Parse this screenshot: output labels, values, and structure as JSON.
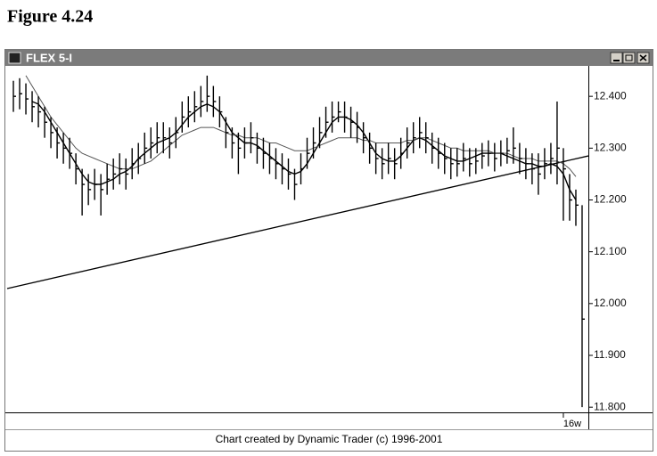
{
  "figure_label": "Figure 4.24",
  "window_title": "FLEX 5-I",
  "chart_data": {
    "type": "ohlc",
    "footer": "Chart created by Dynamic Trader (c) 1996-2001",
    "x": [
      0,
      1,
      2,
      3,
      4,
      5,
      6,
      7,
      8,
      9,
      10,
      11,
      12,
      13,
      14,
      15,
      16,
      17,
      18,
      19,
      20,
      21,
      22,
      23,
      24,
      25,
      26,
      27,
      28,
      29,
      30,
      31,
      32,
      33,
      34,
      35,
      36,
      37,
      38,
      39,
      40,
      41,
      42,
      43,
      44,
      45,
      46,
      47,
      48,
      49,
      50,
      51,
      52,
      53,
      54,
      55,
      56,
      57,
      58,
      59,
      60,
      61,
      62,
      63,
      64,
      65,
      66,
      67,
      68,
      69,
      70,
      71,
      72,
      73,
      74,
      75,
      76,
      77,
      78,
      79,
      80,
      81,
      82,
      83,
      84,
      85,
      86,
      87,
      88,
      89,
      90,
      91
    ],
    "high": [
      12.43,
      12.435,
      12.425,
      12.41,
      12.4,
      12.38,
      12.36,
      12.34,
      12.33,
      12.32,
      12.29,
      12.26,
      12.25,
      12.26,
      12.25,
      12.27,
      12.28,
      12.29,
      12.28,
      12.3,
      12.31,
      12.33,
      12.34,
      12.35,
      12.35,
      12.34,
      12.36,
      12.39,
      12.4,
      12.41,
      12.42,
      12.44,
      12.42,
      12.4,
      12.36,
      12.34,
      12.33,
      12.34,
      12.35,
      12.33,
      12.32,
      12.31,
      12.3,
      12.29,
      12.28,
      12.26,
      12.29,
      12.32,
      12.34,
      12.36,
      12.38,
      12.39,
      12.39,
      12.39,
      12.38,
      12.37,
      12.35,
      12.33,
      12.31,
      12.3,
      12.31,
      12.3,
      12.32,
      12.34,
      12.35,
      12.36,
      12.35,
      12.33,
      12.32,
      12.31,
      12.3,
      12.3,
      12.31,
      12.3,
      12.3,
      12.31,
      12.315,
      12.31,
      12.315,
      12.32,
      12.34,
      12.31,
      12.3,
      12.29,
      12.29,
      12.3,
      12.31,
      12.39,
      12.3,
      12.25,
      12.22,
      12.19
    ],
    "low": [
      12.37,
      12.375,
      12.365,
      12.35,
      12.34,
      12.32,
      12.3,
      12.28,
      12.27,
      12.26,
      12.23,
      12.17,
      12.19,
      12.2,
      12.17,
      12.21,
      12.22,
      12.23,
      12.22,
      12.24,
      12.25,
      12.27,
      12.28,
      12.29,
      12.29,
      12.28,
      12.3,
      12.33,
      12.34,
      12.35,
      12.36,
      12.37,
      12.36,
      12.34,
      12.3,
      12.28,
      12.25,
      12.28,
      12.29,
      12.27,
      12.26,
      12.25,
      12.24,
      12.23,
      12.22,
      12.2,
      12.23,
      12.26,
      12.28,
      12.3,
      12.32,
      12.33,
      12.35,
      12.33,
      12.32,
      12.31,
      12.29,
      12.27,
      12.25,
      12.24,
      12.25,
      12.24,
      12.26,
      12.28,
      12.29,
      12.3,
      12.29,
      12.27,
      12.26,
      12.25,
      12.24,
      12.245,
      12.255,
      12.245,
      12.25,
      12.26,
      12.265,
      12.255,
      12.265,
      12.27,
      12.27,
      12.25,
      12.24,
      12.23,
      12.21,
      12.24,
      12.25,
      12.23,
      12.16,
      12.16,
      12.15,
      11.8
    ],
    "close": [
      12.4,
      12.405,
      12.395,
      12.38,
      12.37,
      12.35,
      12.33,
      12.31,
      12.3,
      12.29,
      12.26,
      12.23,
      12.22,
      12.23,
      12.22,
      12.24,
      12.25,
      12.26,
      12.25,
      12.27,
      12.28,
      12.3,
      12.31,
      12.32,
      12.32,
      12.31,
      12.33,
      12.36,
      12.37,
      12.38,
      12.39,
      12.4,
      12.39,
      12.37,
      12.33,
      12.31,
      12.3,
      12.31,
      12.32,
      12.3,
      12.29,
      12.28,
      12.27,
      12.26,
      12.25,
      12.23,
      12.26,
      12.29,
      12.31,
      12.33,
      12.35,
      12.36,
      12.37,
      12.36,
      12.35,
      12.34,
      12.32,
      12.3,
      12.28,
      12.27,
      12.28,
      12.27,
      12.29,
      12.31,
      12.32,
      12.33,
      12.32,
      12.3,
      12.29,
      12.28,
      12.27,
      12.27,
      12.28,
      12.27,
      12.275,
      12.285,
      12.29,
      12.28,
      12.29,
      12.295,
      12.3,
      12.28,
      12.27,
      12.26,
      12.25,
      12.27,
      12.28,
      12.3,
      12.26,
      12.2,
      12.19,
      11.97
    ],
    "color": "#000000",
    "overlays": [
      {
        "color": "#000000",
        "values": [
          null,
          null,
          null,
          12.39,
          12.385,
          12.37,
          12.35,
          12.33,
          12.31,
          12.29,
          12.27,
          12.25,
          12.235,
          12.23,
          12.23,
          12.235,
          12.24,
          12.25,
          12.255,
          12.265,
          12.28,
          12.29,
          12.3,
          12.31,
          12.315,
          12.32,
          12.33,
          12.345,
          12.36,
          12.37,
          12.38,
          12.385,
          12.38,
          12.37,
          12.35,
          12.33,
          12.32,
          12.31,
          12.31,
          12.305,
          12.295,
          12.285,
          12.275,
          12.265,
          12.255,
          12.25,
          12.255,
          12.27,
          12.29,
          12.31,
          12.33,
          12.35,
          12.36,
          12.36,
          12.355,
          12.345,
          12.33,
          12.31,
          12.29,
          12.28,
          12.275,
          12.275,
          12.285,
          12.3,
          12.315,
          12.32,
          12.315,
          12.305,
          12.295,
          12.285,
          12.28,
          12.275,
          12.275,
          12.28,
          12.285,
          12.29,
          12.29,
          12.29,
          12.29,
          12.285,
          12.28,
          12.275,
          12.27,
          12.27,
          12.265,
          12.265,
          12.27,
          12.265,
          12.25,
          12.22,
          12.2,
          null
        ]
      },
      {
        "color": "#555555",
        "values": [
          null,
          null,
          12.44,
          12.42,
          12.4,
          12.38,
          12.36,
          12.345,
          12.33,
          12.315,
          12.3,
          12.29,
          12.285,
          12.28,
          12.275,
          12.27,
          12.265,
          12.26,
          12.26,
          12.26,
          12.265,
          12.27,
          12.275,
          12.285,
          12.295,
          12.305,
          12.315,
          12.325,
          12.33,
          12.335,
          12.34,
          12.34,
          12.34,
          12.335,
          12.33,
          12.325,
          12.325,
          12.32,
          12.32,
          12.32,
          12.315,
          12.31,
          12.31,
          12.305,
          12.3,
          12.295,
          12.295,
          12.295,
          12.3,
          12.305,
          12.31,
          12.315,
          12.32,
          12.32,
          12.32,
          12.32,
          12.315,
          12.315,
          12.31,
          12.31,
          12.31,
          12.31,
          12.31,
          12.315,
          12.315,
          12.32,
          12.32,
          12.315,
          12.31,
          12.305,
          12.3,
          12.3,
          12.295,
          12.295,
          12.295,
          12.295,
          12.295,
          12.29,
          12.29,
          12.29,
          12.285,
          12.28,
          12.28,
          12.28,
          12.275,
          12.275,
          12.275,
          12.275,
          12.27,
          12.26,
          12.245,
          null
        ]
      }
    ],
    "trendline": {
      "x": [
        -1,
        92
      ],
      "y": [
        12.029,
        12.285
      ]
    },
    "xlim": [
      -1,
      92
    ],
    "xticks": [
      {
        "value": 88,
        "label": "16w"
      }
    ],
    "ylim": [
      11.79,
      12.457
    ],
    "yticks": [
      {
        "value": 11.8,
        "label": "11.800"
      },
      {
        "value": 11.9,
        "label": "11.900"
      },
      {
        "value": 12.0,
        "label": "12.000"
      },
      {
        "value": 12.1,
        "label": "12.100"
      },
      {
        "value": 12.2,
        "label": "12.200"
      },
      {
        "value": 12.3,
        "label": "12.300"
      },
      {
        "value": 12.4,
        "label": "12.400"
      }
    ]
  }
}
